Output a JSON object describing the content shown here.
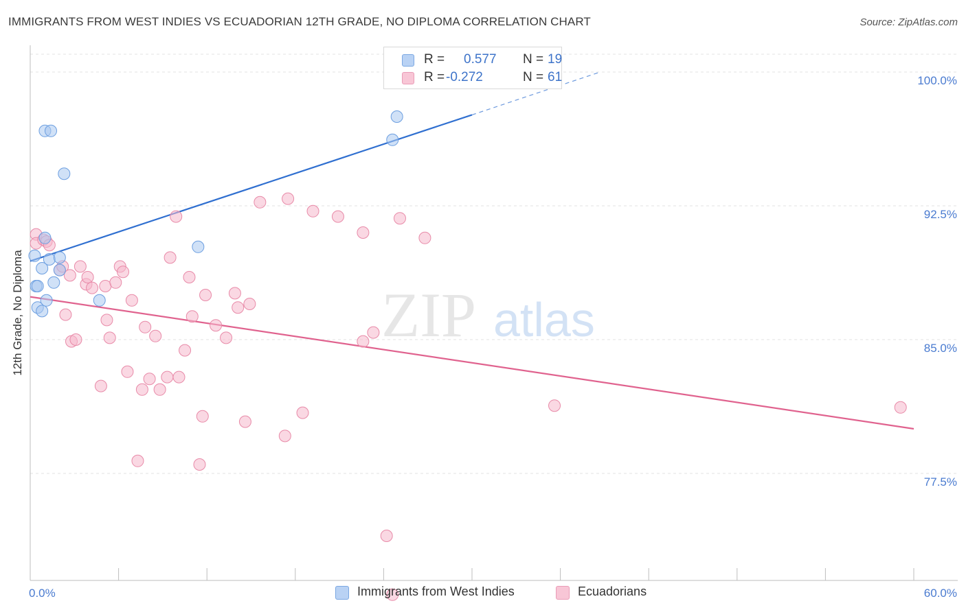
{
  "header": {
    "title": "IMMIGRANTS FROM WEST INDIES VS ECUADORIAN 12TH GRADE, NO DIPLOMA CORRELATION CHART",
    "source": "Source: ZipAtlas.com"
  },
  "watermark": {
    "zip": "ZIP",
    "atlas": "atlas"
  },
  "legend_top": {
    "r_label": "R =",
    "n_label": "N =",
    "rows": [
      {
        "r": "0.577",
        "n": "19"
      },
      {
        "r": "-0.272",
        "n": "61"
      }
    ]
  },
  "legend_bottom": {
    "items": [
      {
        "label": "Immigrants from West Indies"
      },
      {
        "label": "Ecuadorians"
      }
    ]
  },
  "chart_data": {
    "type": "scatter",
    "title": "IMMIGRANTS FROM WEST INDIES VS ECUADORIAN 12TH GRADE, NO DIPLOMA CORRELATION CHART",
    "xlabel": "",
    "ylabel": "12th Grade, No Diploma",
    "x_unit": "%",
    "y_unit": "%",
    "xlim": [
      0,
      60
    ],
    "ylim": [
      71.5,
      101.5
    ],
    "x_tick_labels": [
      "0.0%",
      "60.0%"
    ],
    "y_ticks": [
      77.5,
      85.0,
      92.5,
      100.0
    ],
    "y_tick_labels": [
      "77.5%",
      "85.0%",
      "92.5%",
      "100.0%"
    ],
    "grid": true,
    "legend_position": "top-center",
    "colors": {
      "blue_fill": "#a9c8f0",
      "blue_stroke": "#6b9ee0",
      "blue_line": "#2f6fd0",
      "pink_fill": "#f5b8cc",
      "pink_stroke": "#e88aa8",
      "pink_line": "#e0628e",
      "tick_text": "#4a7bd0"
    },
    "series": [
      {
        "name": "Immigrants from West Indies",
        "color": "blue",
        "points": [
          [
            0.3,
            89.7
          ],
          [
            0.4,
            88.0
          ],
          [
            0.5,
            86.8
          ],
          [
            0.5,
            88.0
          ],
          [
            0.8,
            89.0
          ],
          [
            0.8,
            86.6
          ],
          [
            1.0,
            96.7
          ],
          [
            1.0,
            90.7
          ],
          [
            1.1,
            87.2
          ],
          [
            1.3,
            89.5
          ],
          [
            1.4,
            96.7
          ],
          [
            1.6,
            88.2
          ],
          [
            2.0,
            89.6
          ],
          [
            2.0,
            88.9
          ],
          [
            2.3,
            94.3
          ],
          [
            4.7,
            87.2
          ],
          [
            11.4,
            90.2
          ],
          [
            24.6,
            96.2
          ],
          [
            24.9,
            97.5
          ]
        ],
        "trend": {
          "x0": 0,
          "y0": 89.4,
          "x1": 30,
          "y1": 97.6,
          "dash_x1": 38.7,
          "dash_y1": 100.0
        }
      },
      {
        "name": "Ecuadorians",
        "color": "pink",
        "points": [
          [
            0.4,
            90.9
          ],
          [
            0.4,
            90.4
          ],
          [
            0.9,
            90.6
          ],
          [
            1.1,
            90.5
          ],
          [
            1.3,
            90.3
          ],
          [
            2.0,
            88.9
          ],
          [
            2.2,
            89.1
          ],
          [
            2.4,
            86.4
          ],
          [
            2.7,
            88.6
          ],
          [
            2.8,
            84.9
          ],
          [
            3.1,
            85.0
          ],
          [
            3.4,
            89.1
          ],
          [
            3.8,
            88.1
          ],
          [
            3.9,
            88.5
          ],
          [
            4.2,
            87.9
          ],
          [
            4.8,
            82.4
          ],
          [
            5.1,
            88.0
          ],
          [
            5.2,
            86.1
          ],
          [
            5.4,
            85.1
          ],
          [
            5.8,
            88.2
          ],
          [
            6.1,
            89.1
          ],
          [
            6.3,
            88.8
          ],
          [
            6.6,
            83.2
          ],
          [
            6.9,
            87.2
          ],
          [
            7.3,
            78.2
          ],
          [
            7.6,
            82.2
          ],
          [
            7.8,
            85.7
          ],
          [
            8.1,
            82.8
          ],
          [
            8.5,
            85.2
          ],
          [
            8.8,
            82.2
          ],
          [
            9.3,
            82.9
          ],
          [
            9.5,
            89.6
          ],
          [
            9.9,
            91.9
          ],
          [
            10.1,
            82.9
          ],
          [
            10.5,
            84.4
          ],
          [
            10.8,
            88.5
          ],
          [
            11.0,
            86.3
          ],
          [
            11.5,
            78.0
          ],
          [
            11.7,
            80.7
          ],
          [
            11.9,
            87.5
          ],
          [
            12.6,
            85.8
          ],
          [
            13.3,
            85.1
          ],
          [
            13.9,
            87.6
          ],
          [
            14.1,
            86.8
          ],
          [
            14.6,
            80.4
          ],
          [
            14.9,
            87.0
          ],
          [
            15.6,
            92.7
          ],
          [
            17.3,
            79.6
          ],
          [
            17.5,
            92.9
          ],
          [
            18.5,
            80.9
          ],
          [
            19.2,
            92.2
          ],
          [
            20.9,
            91.9
          ],
          [
            22.6,
            84.9
          ],
          [
            22.6,
            91.0
          ],
          [
            23.3,
            85.4
          ],
          [
            24.2,
            74.0
          ],
          [
            24.6,
            70.7
          ],
          [
            25.1,
            91.8
          ],
          [
            26.8,
            90.7
          ],
          [
            35.6,
            81.3
          ],
          [
            59.1,
            81.2
          ]
        ],
        "trend": {
          "x0": 0,
          "y0": 87.4,
          "x1": 60,
          "y1": 80.0
        }
      }
    ]
  }
}
